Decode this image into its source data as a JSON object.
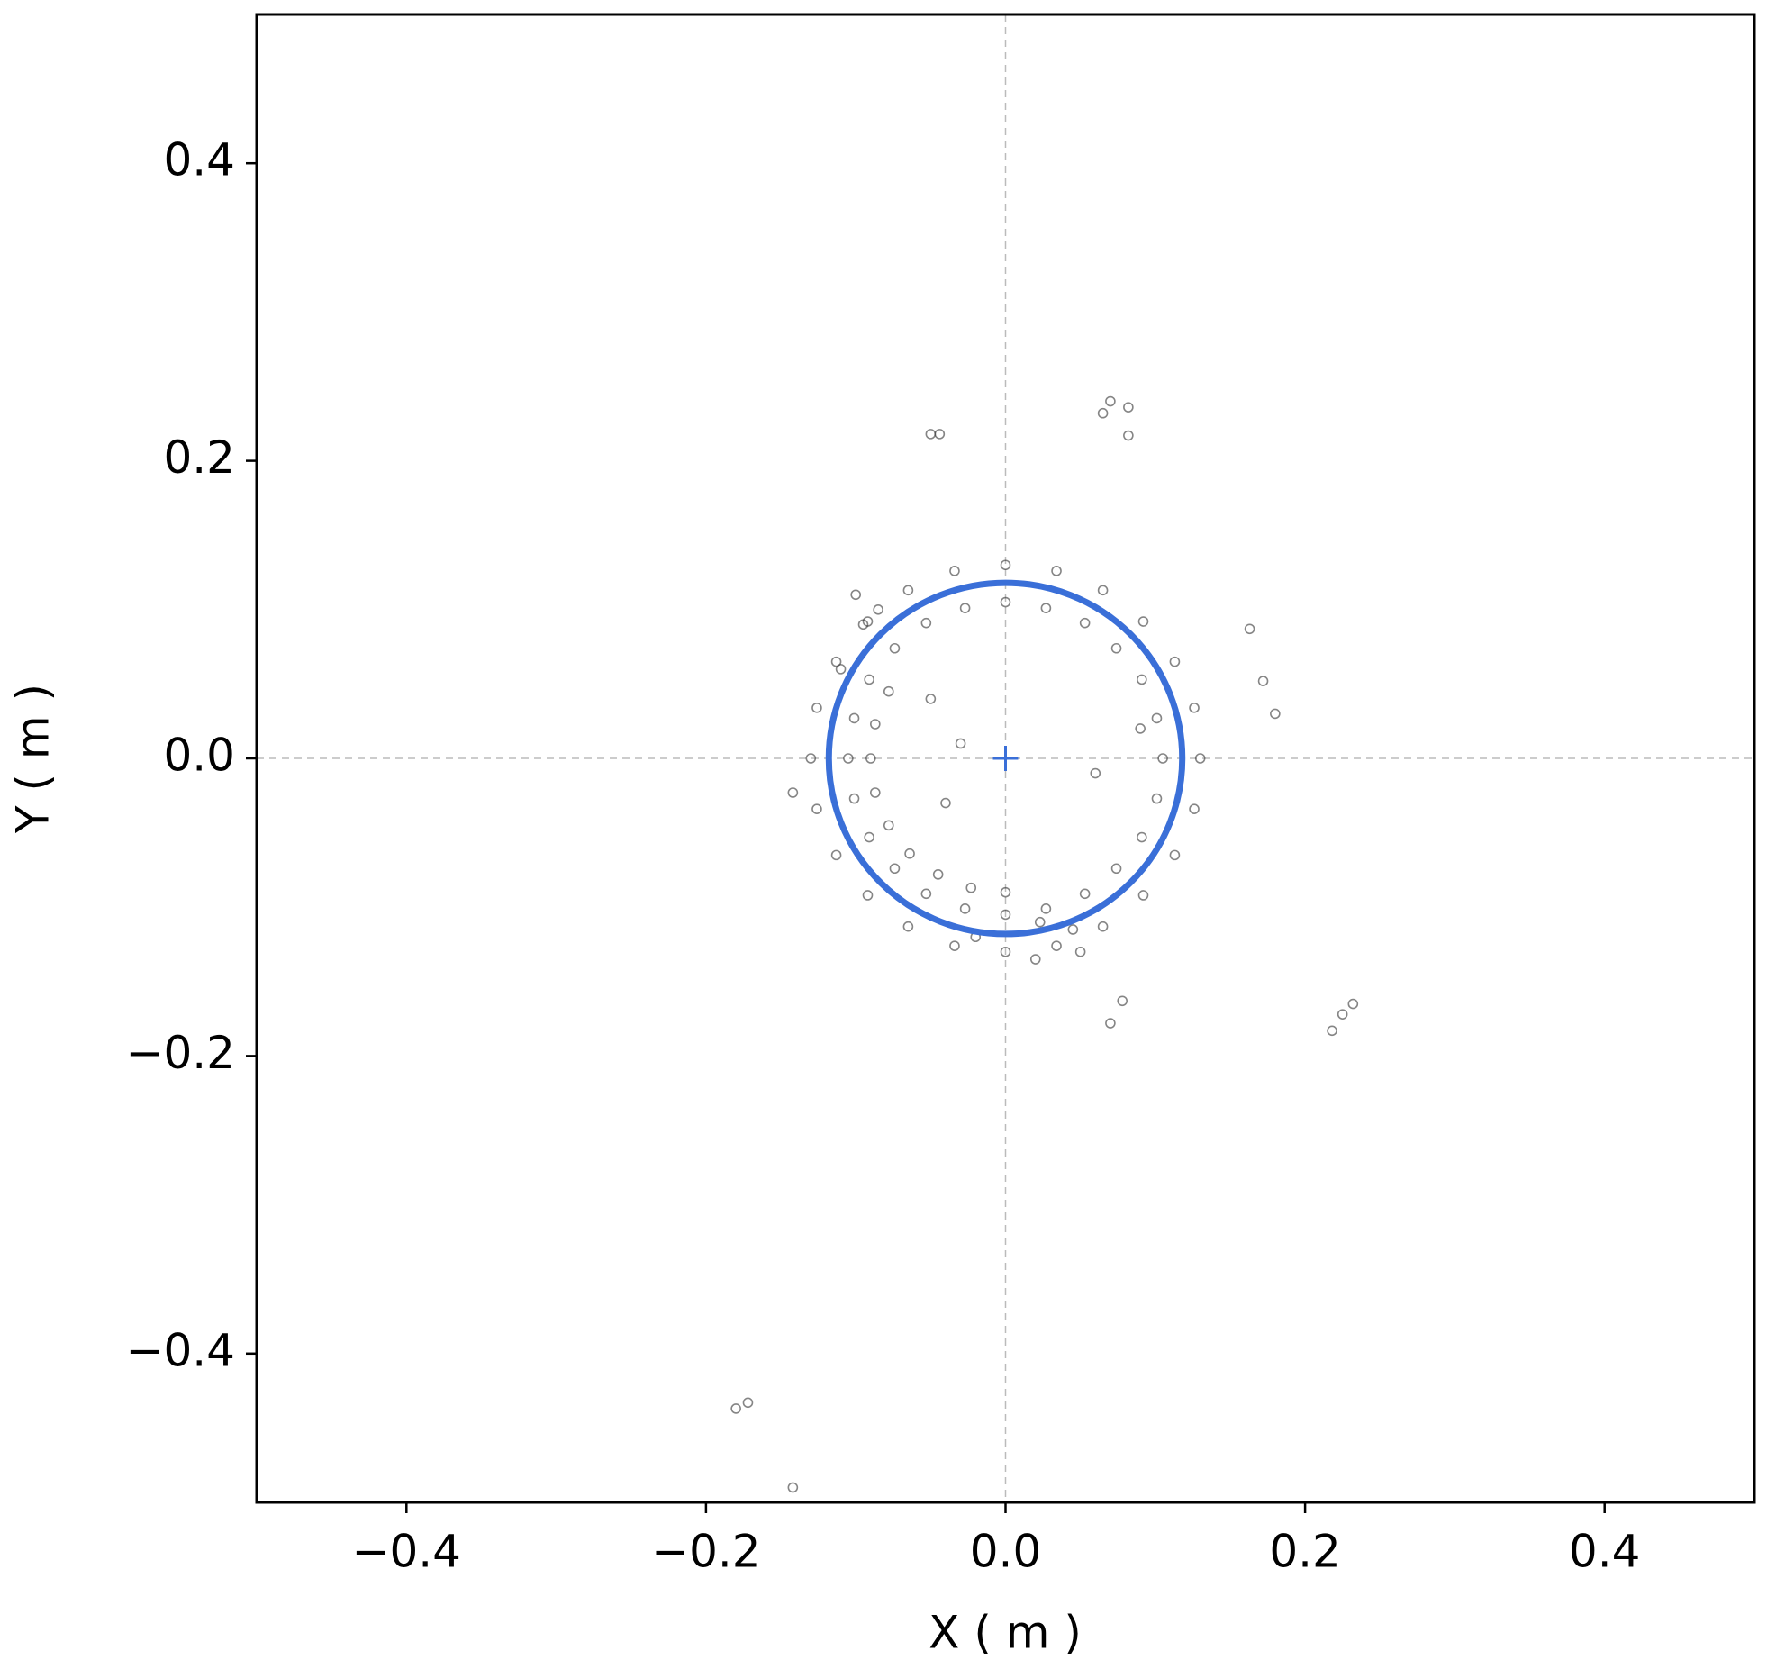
{
  "chart_data": {
    "type": "scatter",
    "xlabel": "X ( m )",
    "ylabel": "Y ( m )",
    "xlim": [
      -0.5,
      0.5
    ],
    "ylim": [
      -0.5,
      0.5
    ],
    "xticks": [
      {
        "value": -0.4,
        "label": "−0.4"
      },
      {
        "value": -0.2,
        "label": "−0.2"
      },
      {
        "value": 0,
        "label": "0.0"
      },
      0.2,
      0.4
    ],
    "yticks": [
      {
        "value": -0.4,
        "label": "−0.4"
      },
      {
        "value": -0.2,
        "label": "−0.2"
      },
      {
        "value": 0,
        "label": "0.0"
      },
      0.2,
      0.4
    ],
    "point_color": "#333333",
    "reference_lines": {
      "x": 0,
      "y": 0,
      "color": "#bbbbbb"
    },
    "circle": {
      "center": [
        0,
        0
      ],
      "radius": 0.118,
      "color": "#3a6fd8"
    },
    "x": [
      -0.05,
      -0.044,
      0.07,
      0.065,
      0.082,
      0.082,
      -0.18,
      -0.172,
      -0.142,
      0.218,
      0.225,
      0.232,
      -0.142,
      0.18,
      0.172,
      0.163,
      0.07,
      0.078,
      0.105,
      0.101,
      0.091,
      0.074,
      0.053,
      0.027,
      0,
      -0.027,
      -0.053,
      -0.074,
      -0.091,
      -0.101,
      -0.105,
      -0.101,
      -0.091,
      -0.074,
      -0.053,
      -0.027,
      0,
      0.027,
      0.053,
      0.074,
      0.091,
      0.101,
      0.13,
      0.126,
      0.113,
      0.092,
      0.065,
      0.034,
      0,
      -0.034,
      -0.065,
      -0.092,
      -0.113,
      -0.126,
      -0.13,
      -0.126,
      -0.113,
      -0.092,
      -0.065,
      -0.034,
      0,
      0.034,
      0.065,
      0.092,
      0.113,
      0.126,
      -0.09,
      -0.087,
      -0.087,
      -0.078,
      -0.064,
      -0.045,
      -0.023,
      0,
      0.023,
      0.045,
      -0.095,
      -0.1,
      -0.085,
      -0.078,
      -0.11,
      0.02,
      0.05,
      -0.02,
      -0.05,
      -0.03,
      0.06,
      -0.04,
      0.09
    ],
    "y": [
      0.218,
      0.218,
      0.24,
      0.232,
      0.236,
      0.217,
      -0.437,
      -0.433,
      -0.49,
      -0.183,
      -0.172,
      -0.165,
      -0.023,
      0.03,
      0.052,
      0.087,
      -0.178,
      -0.163,
      0,
      0.027,
      0.053,
      0.074,
      0.091,
      0.101,
      0.105,
      0.101,
      0.091,
      0.074,
      0.053,
      0.027,
      0,
      -0.027,
      -0.053,
      -0.074,
      -0.091,
      -0.101,
      -0.105,
      -0.101,
      -0.091,
      -0.074,
      -0.053,
      -0.027,
      0,
      0.034,
      0.065,
      0.092,
      0.113,
      0.126,
      0.13,
      0.126,
      0.113,
      0.092,
      0.065,
      0.034,
      0,
      -0.034,
      -0.065,
      -0.092,
      -0.113,
      -0.126,
      -0.13,
      -0.126,
      -0.113,
      -0.092,
      -0.065,
      -0.034,
      0,
      0.023,
      -0.023,
      -0.045,
      -0.064,
      -0.078,
      -0.087,
      -0.09,
      -0.11,
      -0.115,
      0.09,
      0.11,
      0.1,
      0.045,
      0.06,
      -0.135,
      -0.13,
      -0.12,
      0.04,
      0.01,
      -0.01,
      -0.03,
      0.02
    ]
  }
}
